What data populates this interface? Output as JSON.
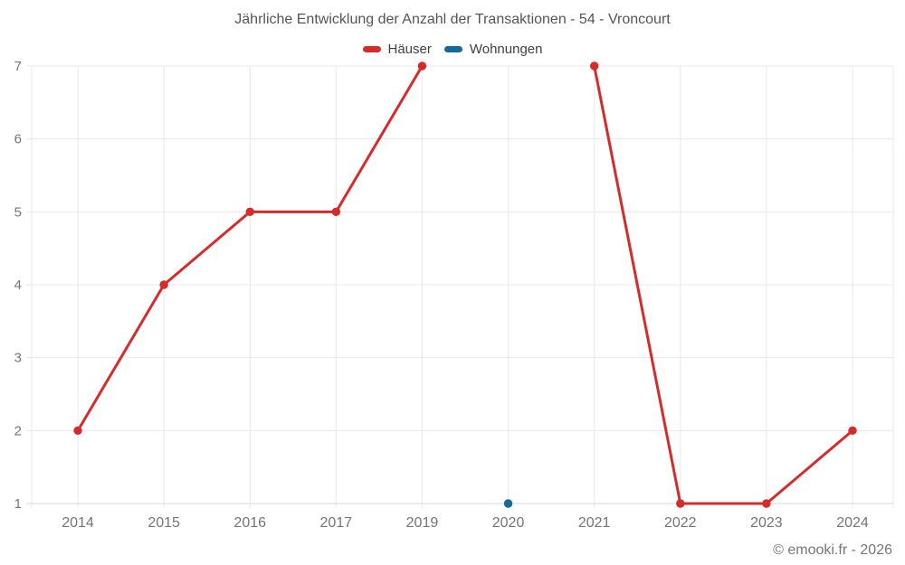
{
  "chart_data": {
    "type": "line",
    "title": "Jährliche Entwicklung der Anzahl der Transaktionen - 54 - Vroncourt",
    "categories": [
      "2014",
      "2015",
      "2016",
      "2017",
      "2019",
      "2020",
      "2021",
      "2022",
      "2023",
      "2024"
    ],
    "series": [
      {
        "name": "Häuser",
        "color": "#d62b2b",
        "values": [
          2,
          4,
          5,
          5,
          7,
          null,
          7,
          1,
          1,
          2
        ]
      },
      {
        "name": "Wohnungen",
        "color": "#17699e",
        "values": [
          null,
          null,
          null,
          null,
          null,
          1,
          null,
          null,
          null,
          null
        ]
      }
    ],
    "ylim": [
      1,
      7
    ],
    "yticks": [
      1,
      2,
      3,
      4,
      5,
      6,
      7
    ],
    "grid": true,
    "legend_position": "top",
    "note_gap": "Häuser line is broken at 2020 (no value); 2018 is absent from the x-axis"
  },
  "footer": {
    "copyright": "© emooki.fr - 2026"
  },
  "colors": {
    "grid": "#e8e8e8",
    "baseline": "#d9d9d9",
    "axis_label": "#757575",
    "title_text": "#54545a",
    "legend_text": "#3f3f46",
    "hauser_red": "#d62b2b",
    "wohnungen_blue": "#17699e"
  }
}
